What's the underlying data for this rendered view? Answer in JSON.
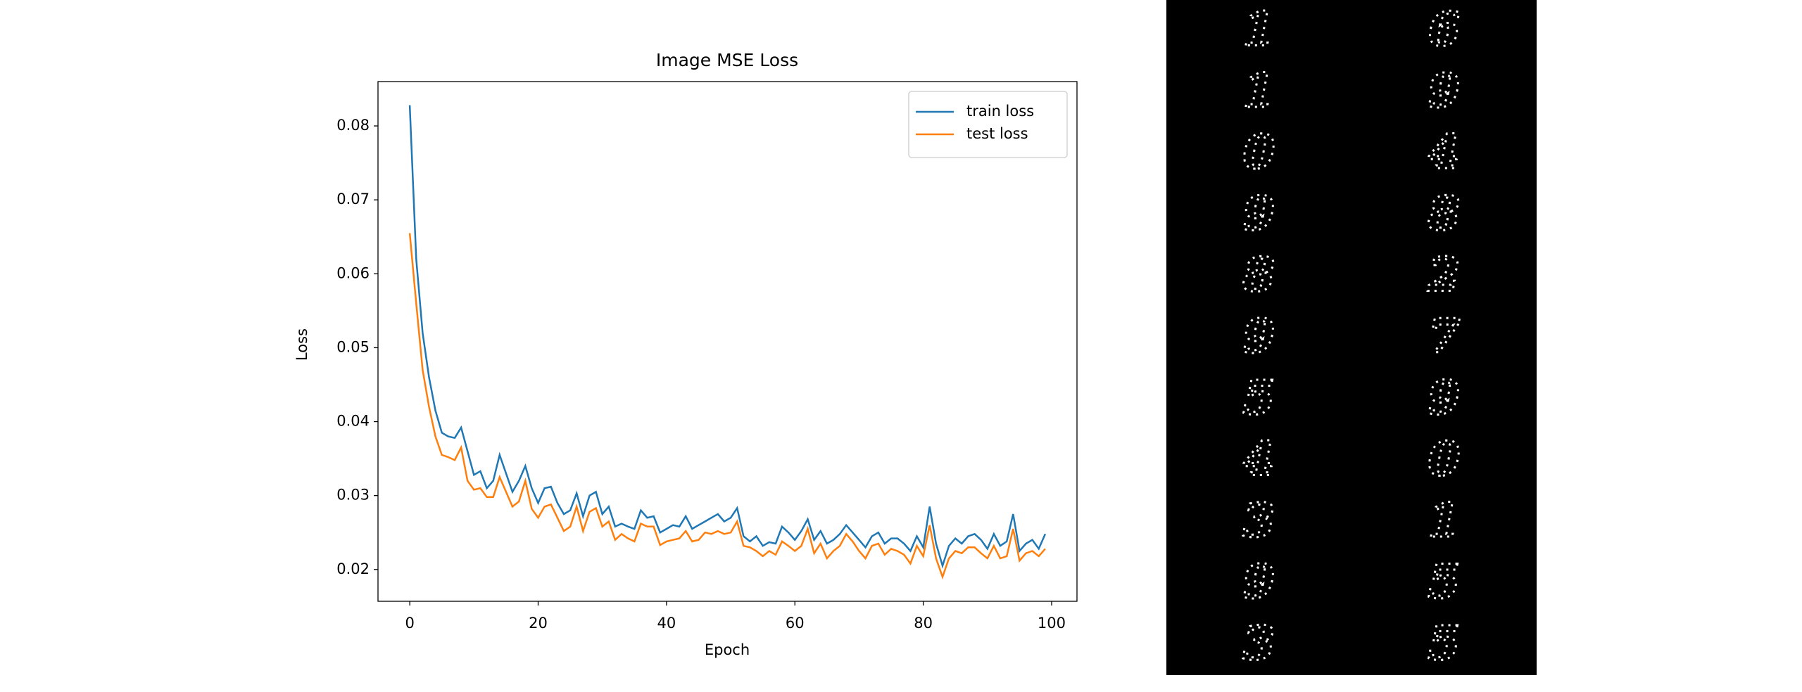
{
  "chart_data": {
    "type": "line",
    "title": "Image MSE Loss",
    "x_label": "Epoch",
    "y_label": "Loss",
    "x": [
      0,
      1,
      2,
      3,
      4,
      5,
      6,
      7,
      8,
      9,
      10,
      11,
      12,
      13,
      14,
      15,
      16,
      17,
      18,
      19,
      20,
      21,
      22,
      23,
      24,
      25,
      26,
      27,
      28,
      29,
      30,
      31,
      32,
      33,
      34,
      35,
      36,
      37,
      38,
      39,
      40,
      41,
      42,
      43,
      44,
      45,
      46,
      47,
      48,
      49,
      50,
      51,
      52,
      53,
      54,
      55,
      56,
      57,
      58,
      59,
      60,
      61,
      62,
      63,
      64,
      65,
      66,
      67,
      68,
      69,
      70,
      71,
      72,
      73,
      74,
      75,
      76,
      77,
      78,
      79,
      80,
      81,
      82,
      83,
      84,
      85,
      86,
      87,
      88,
      89,
      90,
      91,
      92,
      93,
      94,
      95,
      96,
      97,
      98,
      99
    ],
    "series": [
      {
        "name": "train loss",
        "color": "#1f77b4",
        "values": [
          0.0828,
          0.062,
          0.052,
          0.046,
          0.0415,
          0.0385,
          0.038,
          0.0378,
          0.0392,
          0.036,
          0.0328,
          0.0333,
          0.031,
          0.032,
          0.0355,
          0.033,
          0.0305,
          0.032,
          0.034,
          0.031,
          0.029,
          0.031,
          0.0312,
          0.029,
          0.0275,
          0.028,
          0.0303,
          0.0272,
          0.03,
          0.0305,
          0.0275,
          0.0285,
          0.0258,
          0.0262,
          0.0258,
          0.0255,
          0.028,
          0.027,
          0.0272,
          0.025,
          0.0255,
          0.026,
          0.0258,
          0.0272,
          0.0255,
          0.026,
          0.0265,
          0.027,
          0.0275,
          0.0265,
          0.027,
          0.0283,
          0.0245,
          0.0238,
          0.0245,
          0.0232,
          0.0237,
          0.0235,
          0.0258,
          0.025,
          0.024,
          0.0252,
          0.0268,
          0.024,
          0.0252,
          0.0235,
          0.024,
          0.0248,
          0.026,
          0.025,
          0.024,
          0.023,
          0.0245,
          0.025,
          0.0235,
          0.0242,
          0.0242,
          0.0235,
          0.0225,
          0.0245,
          0.023,
          0.0285,
          0.0235,
          0.0205,
          0.0232,
          0.0242,
          0.0235,
          0.0245,
          0.0248,
          0.024,
          0.0228,
          0.0248,
          0.0232,
          0.0238,
          0.0275,
          0.0225,
          0.0235,
          0.024,
          0.0228,
          0.0248
        ]
      },
      {
        "name": "test loss",
        "color": "#ff7f0e",
        "values": [
          0.0655,
          0.056,
          0.047,
          0.042,
          0.038,
          0.0355,
          0.0352,
          0.0348,
          0.0365,
          0.032,
          0.0308,
          0.031,
          0.0298,
          0.0298,
          0.0325,
          0.0305,
          0.0285,
          0.0292,
          0.032,
          0.0282,
          0.027,
          0.0285,
          0.0288,
          0.027,
          0.0252,
          0.0258,
          0.0285,
          0.0252,
          0.0278,
          0.0283,
          0.0258,
          0.0265,
          0.024,
          0.0248,
          0.0242,
          0.0238,
          0.0262,
          0.0258,
          0.0258,
          0.0233,
          0.0238,
          0.024,
          0.0242,
          0.0252,
          0.0238,
          0.024,
          0.025,
          0.0248,
          0.0252,
          0.0248,
          0.025,
          0.0265,
          0.0232,
          0.023,
          0.0225,
          0.0218,
          0.0225,
          0.022,
          0.0238,
          0.0232,
          0.0225,
          0.0232,
          0.0255,
          0.0222,
          0.0235,
          0.0215,
          0.0225,
          0.0232,
          0.0248,
          0.0238,
          0.0225,
          0.0215,
          0.0232,
          0.0235,
          0.022,
          0.0228,
          0.0225,
          0.022,
          0.0208,
          0.0232,
          0.0218,
          0.026,
          0.0215,
          0.019,
          0.0215,
          0.0225,
          0.0222,
          0.023,
          0.023,
          0.0222,
          0.0215,
          0.0232,
          0.0215,
          0.0218,
          0.0255,
          0.0212,
          0.0222,
          0.0225,
          0.0218,
          0.0228
        ]
      }
    ],
    "xlim": [
      -4.95,
      103.95
    ],
    "xticks": [
      0,
      20,
      40,
      60,
      80,
      100
    ],
    "ylim": [
      0.0157,
      0.086
    ],
    "yticks": [
      0.02,
      0.03,
      0.04,
      0.05,
      0.06,
      0.07,
      0.08
    ],
    "legend": "upper right"
  },
  "digit_grid": [
    [
      "1",
      "6"
    ],
    [
      "1",
      "9"
    ],
    [
      "0",
      "4"
    ],
    [
      "9",
      "8"
    ],
    [
      "8",
      "2"
    ],
    [
      "9",
      "7"
    ],
    [
      "5",
      "9"
    ],
    [
      "4",
      "0"
    ],
    [
      "3",
      "1"
    ],
    [
      "9",
      "5"
    ],
    [
      "3",
      "5"
    ]
  ]
}
